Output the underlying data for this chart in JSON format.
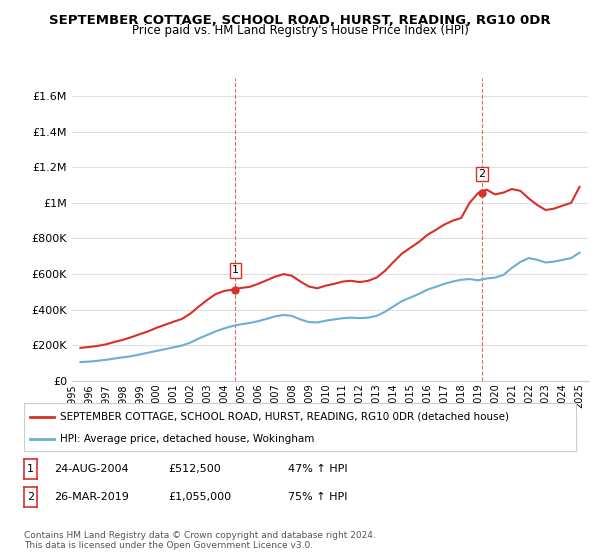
{
  "title": "SEPTEMBER COTTAGE, SCHOOL ROAD, HURST, READING, RG10 0DR",
  "subtitle": "Price paid vs. HM Land Registry's House Price Index (HPI)",
  "ylim": [
    0,
    1700000
  ],
  "yticks": [
    0,
    200000,
    400000,
    600000,
    800000,
    1000000,
    1200000,
    1400000,
    1600000
  ],
  "ytick_labels": [
    "£0",
    "£200K",
    "£400K",
    "£600K",
    "£800K",
    "£1M",
    "£1.2M",
    "£1.4M",
    "£1.6M"
  ],
  "hpi_color": "#6baed6",
  "price_color": "#d73027",
  "sale1_x": 2004.65,
  "sale1_y": 512500,
  "sale1_label": "1",
  "sale2_x": 2019.23,
  "sale2_y": 1055000,
  "sale2_label": "2",
  "legend_line1": "SEPTEMBER COTTAGE, SCHOOL ROAD, HURST, READING, RG10 0DR (detached house)",
  "legend_line2": "HPI: Average price, detached house, Wokingham",
  "table_row1": [
    "1",
    "24-AUG-2004",
    "£512,500",
    "47% ↑ HPI"
  ],
  "table_row2": [
    "2",
    "26-MAR-2019",
    "£1,055,000",
    "75% ↑ HPI"
  ],
  "footnote": "Contains HM Land Registry data © Crown copyright and database right 2024.\nThis data is licensed under the Open Government Licence v3.0.",
  "hpi_data_x": [
    1995.5,
    1996.0,
    1996.5,
    1997.0,
    1997.5,
    1998.0,
    1998.5,
    1999.0,
    1999.5,
    2000.0,
    2000.5,
    2001.0,
    2001.5,
    2002.0,
    2002.5,
    2003.0,
    2003.5,
    2004.0,
    2004.5,
    2005.0,
    2005.5,
    2006.0,
    2006.5,
    2007.0,
    2007.5,
    2008.0,
    2008.5,
    2009.0,
    2009.5,
    2010.0,
    2010.5,
    2011.0,
    2011.5,
    2012.0,
    2012.5,
    2013.0,
    2013.5,
    2014.0,
    2014.5,
    2015.0,
    2015.5,
    2016.0,
    2016.5,
    2017.0,
    2017.5,
    2018.0,
    2018.5,
    2019.0,
    2019.5,
    2020.0,
    2020.5,
    2021.0,
    2021.5,
    2022.0,
    2022.5,
    2023.0,
    2023.5,
    2024.0,
    2024.5,
    2025.0
  ],
  "hpi_data_y": [
    105000,
    108000,
    112000,
    118000,
    125000,
    132000,
    138000,
    148000,
    158000,
    168000,
    178000,
    188000,
    198000,
    215000,
    238000,
    258000,
    278000,
    295000,
    308000,
    318000,
    325000,
    335000,
    348000,
    362000,
    370000,
    365000,
    345000,
    330000,
    328000,
    338000,
    345000,
    352000,
    355000,
    352000,
    355000,
    365000,
    388000,
    418000,
    448000,
    468000,
    488000,
    512000,
    528000,
    545000,
    558000,
    568000,
    572000,
    565000,
    575000,
    580000,
    595000,
    635000,
    668000,
    690000,
    680000,
    665000,
    670000,
    680000,
    690000,
    720000
  ],
  "price_data_x": [
    1995.5,
    1996.0,
    1996.5,
    1997.0,
    1997.5,
    1998.0,
    1998.5,
    1999.0,
    1999.5,
    2000.0,
    2000.5,
    2001.0,
    2001.5,
    2002.0,
    2002.5,
    2003.0,
    2003.5,
    2004.0,
    2004.5,
    2005.0,
    2005.5,
    2006.0,
    2006.5,
    2007.0,
    2007.5,
    2008.0,
    2008.5,
    2009.0,
    2009.5,
    2010.0,
    2010.5,
    2011.0,
    2011.5,
    2012.0,
    2012.5,
    2013.0,
    2013.5,
    2014.0,
    2014.5,
    2015.0,
    2015.5,
    2016.0,
    2016.5,
    2017.0,
    2017.5,
    2018.0,
    2018.5,
    2019.0,
    2019.5,
    2020.0,
    2020.5,
    2021.0,
    2021.5,
    2022.0,
    2022.5,
    2023.0,
    2023.5,
    2024.0,
    2024.5,
    2025.0
  ],
  "price_data_y": [
    185000,
    190000,
    196000,
    205000,
    218000,
    230000,
    245000,
    262000,
    278000,
    298000,
    315000,
    332000,
    348000,
    378000,
    418000,
    455000,
    488000,
    505000,
    512500,
    522000,
    528000,
    545000,
    565000,
    585000,
    600000,
    590000,
    558000,
    530000,
    520000,
    535000,
    545000,
    558000,
    562000,
    555000,
    562000,
    580000,
    618000,
    668000,
    715000,
    748000,
    780000,
    820000,
    848000,
    878000,
    900000,
    915000,
    1000000,
    1055000,
    1075000,
    1048000,
    1058000,
    1078000,
    1068000,
    1025000,
    988000,
    960000,
    968000,
    985000,
    1000000,
    1090000
  ],
  "xlim": [
    1995.0,
    2025.5
  ],
  "xtick_positions": [
    1995,
    1996,
    1997,
    1998,
    1999,
    2000,
    2001,
    2002,
    2003,
    2004,
    2005,
    2006,
    2007,
    2008,
    2009,
    2010,
    2011,
    2012,
    2013,
    2014,
    2015,
    2016,
    2017,
    2018,
    2019,
    2020,
    2021,
    2022,
    2023,
    2024,
    2025
  ],
  "bg_color": "#ffffff",
  "plot_bg_color": "#ffffff",
  "grid_color": "#e0e0e0"
}
